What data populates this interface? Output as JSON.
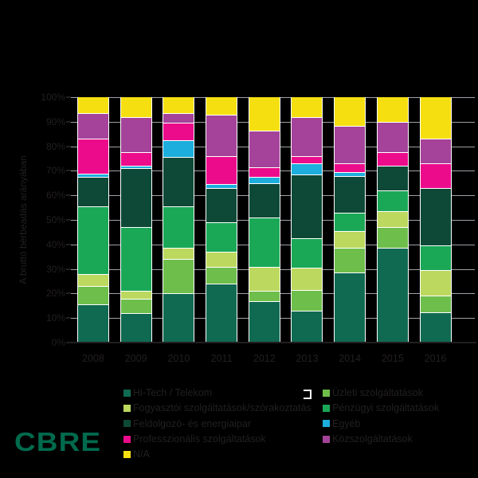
{
  "background": "#000000",
  "chart_data": {
    "type": "bar",
    "stacked": true,
    "stacked_100_percent": true,
    "title": "",
    "xlabel": "",
    "ylabel": "A bruttó bérbeadás arányában",
    "ylim": [
      0,
      100
    ],
    "yticks": [
      0,
      10,
      20,
      30,
      40,
      50,
      60,
      70,
      80,
      90,
      100
    ],
    "ytick_labels": [
      "0%",
      "10%",
      "20%",
      "30%",
      "40%",
      "50%",
      "60%",
      "70%",
      "80%",
      "90%",
      "100%"
    ],
    "grid": true,
    "legend_position": "bottom",
    "categories": [
      "2008",
      "2009",
      "2010",
      "2011",
      "2012",
      "2013",
      "2014",
      "2015",
      "2016"
    ],
    "series": [
      {
        "name": "Hi-Tech / Telekom",
        "color": "#106A51",
        "values": [
          15.5,
          12,
          20,
          24,
          17,
          13,
          28.5,
          38.5,
          12.5
        ]
      },
      {
        "name": "Üzleti szolgáltatások",
        "color": "#6EBE4B",
        "values": [
          7.5,
          6,
          14,
          7,
          4,
          8.5,
          10,
          8.5,
          6.5
        ]
      },
      {
        "name": "Fogyasztói szolgáltatások/szórakoztatás",
        "color": "#BCD85F",
        "values": [
          5,
          3,
          4.5,
          6,
          10,
          9,
          7,
          6.5,
          10.5
        ]
      },
      {
        "name": "Pénzügyi szolgáltatások",
        "color": "#1AA857",
        "values": [
          27.5,
          26,
          17,
          12,
          20,
          12,
          7.5,
          8.5,
          10
        ]
      },
      {
        "name": "Feldolgozó- és energiaipar",
        "color": "#0D4936",
        "values": [
          12,
          24,
          20,
          14,
          14,
          26,
          15,
          10,
          23.5
        ]
      },
      {
        "name": "Egyéb",
        "color": "#1CAEDC",
        "values": [
          1.5,
          1,
          7,
          1.5,
          2.5,
          4.5,
          1.5,
          0,
          0
        ]
      },
      {
        "name": "Professzionális szolgáltatások",
        "color": "#EC0C8B",
        "values": [
          14,
          5.5,
          7,
          11.5,
          4,
          3,
          3.5,
          5.5,
          10
        ]
      },
      {
        "name": "Közszolgáltatások",
        "color": "#A44399",
        "values": [
          10.5,
          14.5,
          4,
          17,
          15,
          16,
          15.5,
          12.5,
          10
        ]
      },
      {
        "name": "N/A",
        "color": "#F6DF10",
        "values": [
          6.5,
          8,
          6.5,
          7,
          13.5,
          8,
          11.5,
          10,
          17
        ]
      }
    ]
  },
  "legend": {
    "columns": [
      [
        0,
        2,
        4,
        6,
        8
      ],
      [
        1,
        3,
        5,
        7
      ]
    ]
  },
  "branding": {
    "logo_text": "CBRE",
    "logo_color": "#006A4D"
  },
  "colors": {
    "text": "#231F20",
    "gridline": "#9EA0A6",
    "axis_line": "#231F20",
    "segment_border": "#FFFFFF",
    "background": "#000000"
  }
}
